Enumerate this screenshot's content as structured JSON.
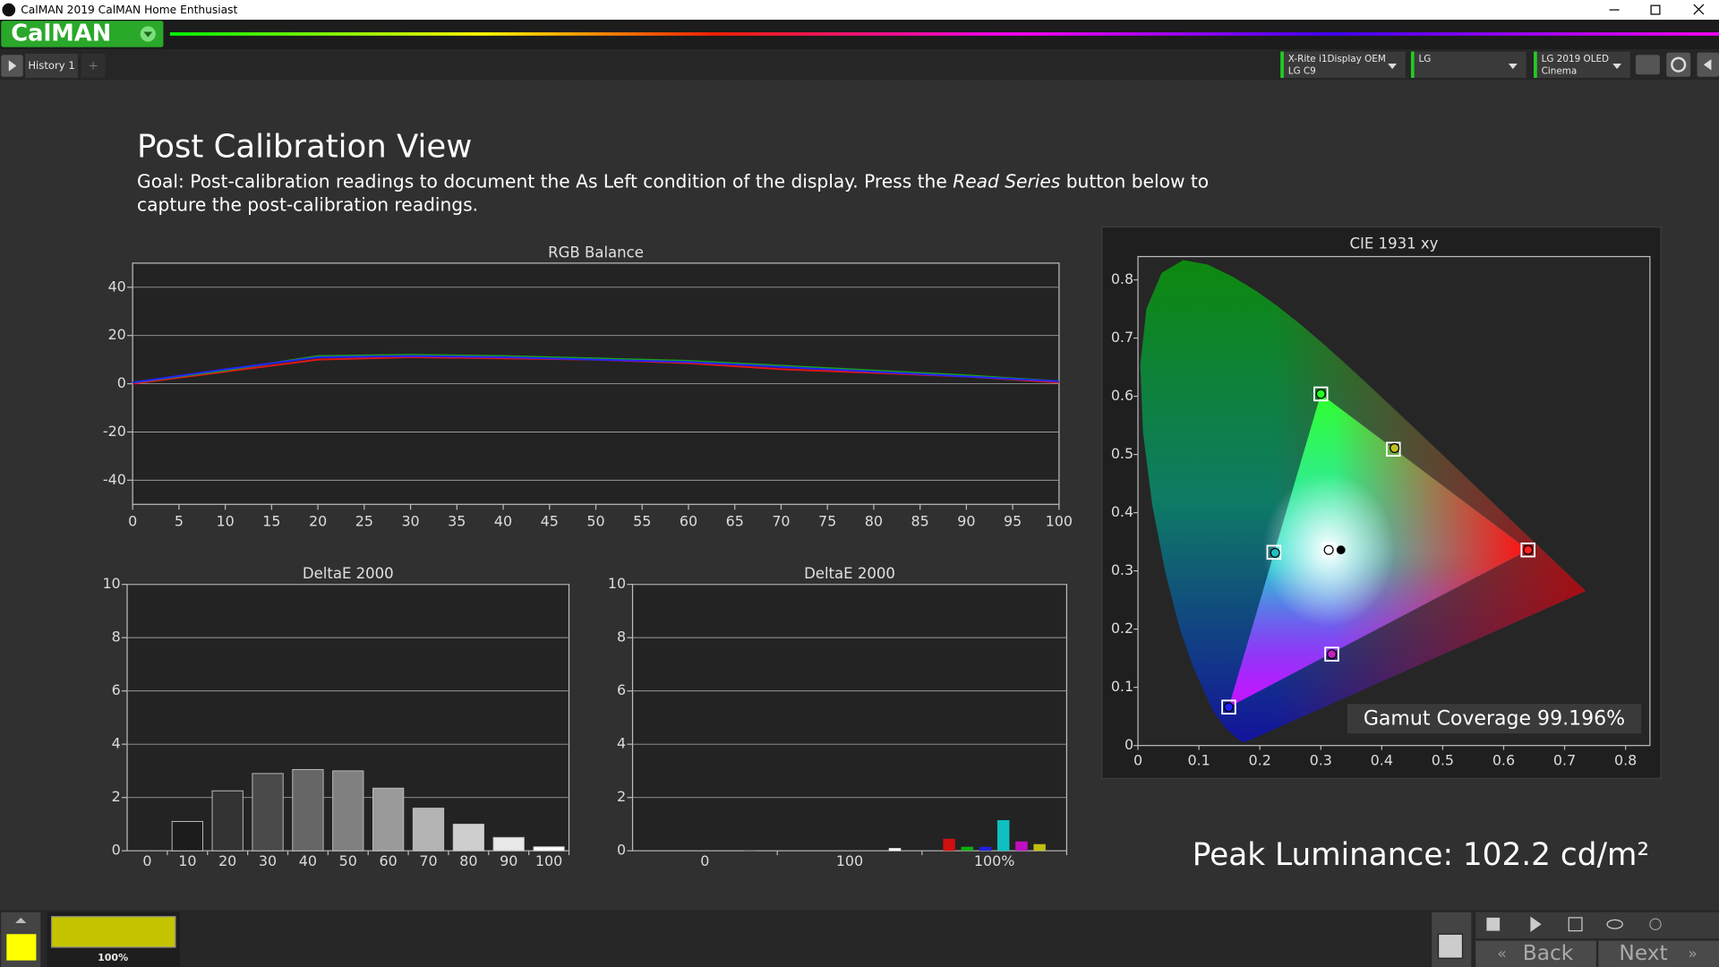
{
  "window": {
    "title": "CalMAN 2019 CalMAN Home Enthusiast"
  },
  "toolbar": {
    "logo": "CalMAN",
    "tab": "History 1",
    "tab_add": "+",
    "devices": [
      [
        "X-Rite i1Display OEM",
        "LG C9"
      ],
      [
        "LG"
      ],
      [
        "LG 2019 OLED",
        "Cinema"
      ]
    ]
  },
  "page": {
    "title": "Post Calibration View",
    "goal": [
      "Goal: Post-calibration readings to document the As Left condition of the display. Press the ",
      "Read Series",
      " button below to",
      "capture the post-calibration readings."
    ]
  },
  "rgb_balance": {
    "type": "line",
    "title": "RGB Balance",
    "x": [
      0,
      10,
      20,
      30,
      40,
      50,
      60,
      70,
      80,
      90,
      100
    ],
    "series": [
      {
        "color": "#e01818",
        "values": [
          0,
          5,
          10,
          11,
          10.5,
          10,
          8.5,
          6,
          4.5,
          3,
          0.5
        ]
      },
      {
        "color": "#18a018",
        "values": [
          0.5,
          5.5,
          11.5,
          12,
          11.5,
          10.5,
          9.5,
          7.5,
          5.5,
          3.5,
          1
        ]
      },
      {
        "color": "#2424ff",
        "values": [
          0.5,
          6,
          11,
          11.5,
          11,
          10,
          9,
          7,
          5,
          3,
          1
        ]
      }
    ],
    "xlim": [
      0,
      100
    ],
    "ylim": [
      -50,
      50
    ],
    "xticks": [
      0,
      5,
      10,
      15,
      20,
      25,
      30,
      35,
      40,
      45,
      50,
      55,
      60,
      65,
      70,
      75,
      80,
      85,
      90,
      95,
      100
    ],
    "yticks": [
      -40,
      -20,
      0,
      20,
      40
    ],
    "grid": true
  },
  "deltae_grayscale": {
    "type": "bar",
    "title": "DeltaE 2000",
    "categories": [
      "0",
      "10",
      "20",
      "30",
      "40",
      "50",
      "60",
      "70",
      "80",
      "90",
      "100"
    ],
    "values": [
      0,
      1.1,
      2.25,
      2.9,
      3.05,
      3.0,
      2.35,
      1.6,
      1.0,
      0.5,
      0.15
    ],
    "colors": [
      "#111111",
      "#1c1c1c",
      "#333333",
      "#4a4a4a",
      "#666666",
      "#808080",
      "#9a9a9a",
      "#b4b4b4",
      "#cfcfcf",
      "#e8e8e8",
      "#ffffff"
    ],
    "ylim": [
      0,
      10
    ],
    "yticks": [
      0,
      2,
      4,
      6,
      8,
      10
    ],
    "grid": true
  },
  "deltae_colors": {
    "type": "grouped-bar",
    "title": "DeltaE 2000",
    "groups": [
      {
        "label": "0",
        "values": [
          null,
          null,
          null,
          null,
          null,
          null,
          0.03,
          null
        ],
        "colors": [
          null,
          null,
          null,
          null,
          null,
          null,
          "#777777",
          null
        ]
      },
      {
        "label": "100",
        "values": [
          null,
          null,
          null,
          null,
          null,
          null,
          0.1,
          null
        ],
        "colors": [
          null,
          null,
          null,
          null,
          null,
          null,
          "#ffffff",
          null
        ]
      },
      {
        "label": "100%",
        "values": [
          null,
          0.45,
          0.15,
          0.15,
          1.15,
          0.35,
          0.25,
          null
        ],
        "colors": [
          null,
          "#d01010",
          "#10b010",
          "#2020e0",
          "#10c0c0",
          "#c010c0",
          "#c0c010",
          null
        ]
      }
    ],
    "ylim": [
      0,
      10
    ],
    "yticks": [
      0,
      2,
      4,
      6,
      8,
      10
    ],
    "grid": true
  },
  "cie": {
    "type": "scatter",
    "title": "CIE 1931 xy",
    "xlim": [
      0,
      0.84
    ],
    "ylim": [
      0,
      0.84
    ],
    "xticks": [
      0,
      0.1,
      0.2,
      0.3,
      0.4,
      0.5,
      0.6,
      0.7,
      0.8
    ],
    "yticks": [
      0,
      0.1,
      0.2,
      0.3,
      0.4,
      0.5,
      0.6,
      0.7,
      0.8
    ],
    "target": {
      "x": [
        0.64,
        0.3,
        0.149,
        0.223,
        0.318,
        0.419,
        0.313
      ],
      "y": [
        0.336,
        0.604,
        0.066,
        0.332,
        0.157,
        0.509,
        0.336
      ]
    },
    "measured": {
      "x": [
        0.64,
        0.3,
        0.149,
        0.225,
        0.318,
        0.421,
        0.313
      ],
      "y": [
        0.336,
        0.604,
        0.066,
        0.331,
        0.157,
        0.511,
        0.336
      ],
      "colors": [
        "#ff2020",
        "#20ff20",
        "#2020ff",
        "#20c0c0",
        "#c020c0",
        "#c0c020",
        "#ffffff"
      ]
    },
    "white_point": {
      "x": 0.333,
      "y": 0.336
    },
    "annotation": "Gamut Coverage 99.196%"
  },
  "peak_luminance": "Peak Luminance: 102.2 cd/m²",
  "footer": {
    "swatch_label": "100%",
    "back": "Back",
    "next": "Next"
  }
}
